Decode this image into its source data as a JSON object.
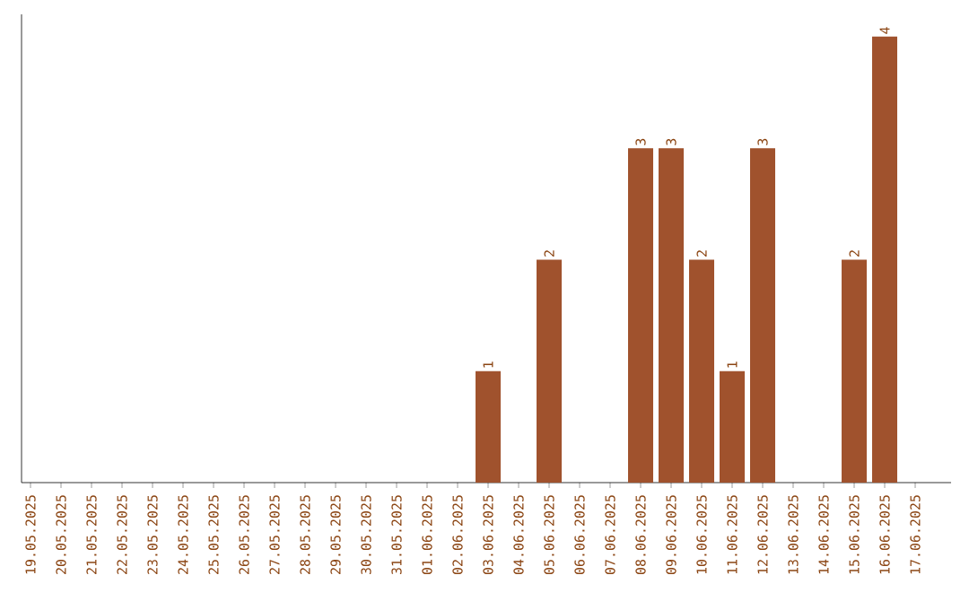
{
  "chart_data": {
    "type": "bar",
    "categories": [
      "19.05.2025",
      "20.05.2025",
      "21.05.2025",
      "22.05.2025",
      "23.05.2025",
      "24.05.2025",
      "25.05.2025",
      "26.05.2025",
      "27.05.2025",
      "28.05.2025",
      "29.05.2025",
      "30.05.2025",
      "31.05.2025",
      "01.06.2025",
      "02.06.2025",
      "03.06.2025",
      "04.06.2025",
      "05.06.2025",
      "06.06.2025",
      "07.06.2025",
      "08.06.2025",
      "09.06.2025",
      "10.06.2025",
      "11.06.2025",
      "12.06.2025",
      "13.06.2025",
      "14.06.2025",
      "15.06.2025",
      "16.06.2025",
      "17.06.2025"
    ],
    "values": [
      null,
      null,
      null,
      null,
      null,
      null,
      null,
      null,
      null,
      null,
      null,
      null,
      null,
      null,
      null,
      1,
      null,
      2,
      null,
      null,
      3,
      3,
      2,
      1,
      3,
      null,
      null,
      2,
      4,
      null
    ],
    "value_labels": [
      null,
      null,
      null,
      null,
      null,
      null,
      null,
      null,
      null,
      null,
      null,
      null,
      null,
      null,
      null,
      "1",
      null,
      "2",
      null,
      null,
      "3",
      "3",
      "2",
      "1",
      "3",
      null,
      null,
      "2",
      "4",
      null
    ],
    "color": "#a0522d",
    "ylim": [
      0,
      4.2
    ],
    "tick_labels": "x"
  }
}
